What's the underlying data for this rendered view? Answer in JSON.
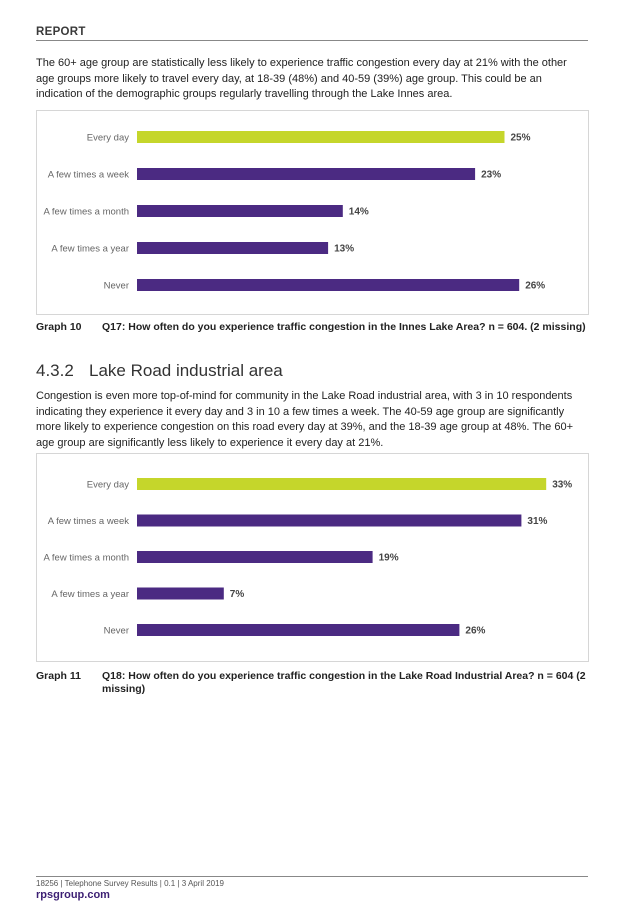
{
  "header": {
    "label": "REPORT"
  },
  "paragraph1": "The 60+ age group are statistically less likely to experience traffic congestion every day at 21% with the other age groups more likely to travel every day, at 18-39 (48%) and 40-59 (39%) age group. This could be an indication of the demographic groups regularly travelling through the Lake Innes area.",
  "section": {
    "number": "4.3.2",
    "title": "Lake Road industrial area"
  },
  "paragraph2": "Congestion is even more top-of-mind for community in the Lake Road industrial area, with 3 in 10 respondents indicating they experience it every day and 3 in 10 a few times a week. The 40-59 age group are significantly more likely to experience congestion on this road every day at 39%, and the 18-39 age group at 48%. The 60+ age group are significantly less likely to experience it every day at 21%.",
  "colors": {
    "highlight_bar": "#c5d62b",
    "standard_bar": "#4b2a82",
    "brand": "#3c1f73"
  },
  "chart_data": [
    {
      "type": "bar",
      "orientation": "horizontal",
      "categories": [
        "Every day",
        "A few times a week",
        "A few times a month",
        "A few times a year",
        "Never"
      ],
      "values": [
        25,
        23,
        14,
        13,
        26
      ],
      "value_labels": [
        "25%",
        "23%",
        "14%",
        "13%",
        "26%"
      ],
      "unit": "%",
      "xlim": [
        0,
        30
      ],
      "grid": false,
      "highlight_index": 0
    },
    {
      "type": "bar",
      "orientation": "horizontal",
      "categories": [
        "Every day",
        "A few times a week",
        "A few times a month",
        "A few times a year",
        "Never"
      ],
      "values": [
        33,
        31,
        19,
        7,
        26
      ],
      "value_labels": [
        "33%",
        "31%",
        "19%",
        "7%",
        "26%"
      ],
      "unit": "%",
      "xlim": [
        0,
        37
      ],
      "grid": false,
      "highlight_index": 0
    }
  ],
  "captions": [
    {
      "number": "Graph 10",
      "text": "Q17: How often do you experience traffic congestion in the Innes Lake Area? n = 604. (2 missing)"
    },
    {
      "number": "Graph 11",
      "text": "Q18: How often do you experience traffic congestion in the Lake Road Industrial Area? n = 604 (2 missing)"
    }
  ],
  "footer": {
    "meta": "18256 | Telephone Survey Results | 0.1 | 3 April 2019",
    "site": "rpsgroup.com"
  }
}
